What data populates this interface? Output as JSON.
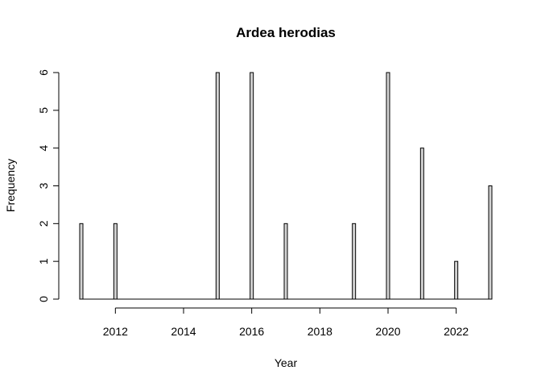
{
  "chart_data": {
    "type": "bar",
    "title": "Ardea herodias",
    "xlabel": "Year",
    "ylabel": "Frequency",
    "bar_fill": "#d3d3d3",
    "bar_stroke": "#000000",
    "x": [
      2011,
      2012,
      2015,
      2016,
      2017,
      2019,
      2020,
      2021,
      2022,
      2023
    ],
    "values": [
      2,
      2,
      6,
      6,
      2,
      2,
      6,
      4,
      1,
      3
    ],
    "xlim": [
      2011,
      2023
    ],
    "ylim": [
      0,
      6
    ],
    "x_ticks": [
      2012,
      2014,
      2016,
      2018,
      2020,
      2022
    ],
    "y_ticks": [
      0,
      1,
      2,
      3,
      4,
      5,
      6
    ],
    "grid": false,
    "legend": "none"
  }
}
